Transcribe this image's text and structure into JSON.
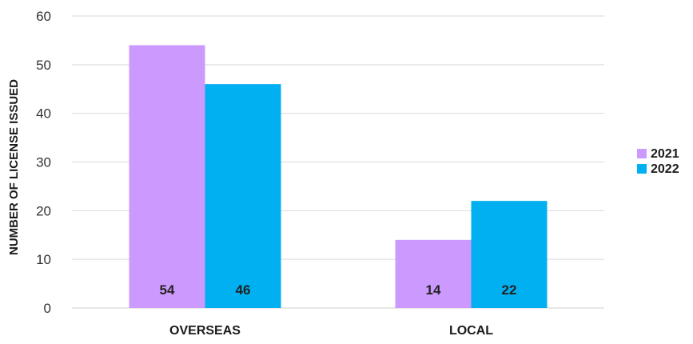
{
  "chart_data": {
    "type": "bar",
    "title": "",
    "xlabel": "",
    "ylabel": "NUMBER OF LICENSE ISSUED",
    "categories": [
      "OVERSEAS",
      "LOCAL"
    ],
    "series": [
      {
        "name": "2021",
        "values": [
          54,
          14
        ],
        "color": "#cc99ff"
      },
      {
        "name": "2022",
        "values": [
          46,
          22
        ],
        "color": "#00b0f0"
      }
    ],
    "ylim": [
      0,
      60
    ],
    "yticks": [
      0,
      10,
      20,
      30,
      40,
      50,
      60
    ],
    "grid": true,
    "legend": "right",
    "data_labels": true
  }
}
